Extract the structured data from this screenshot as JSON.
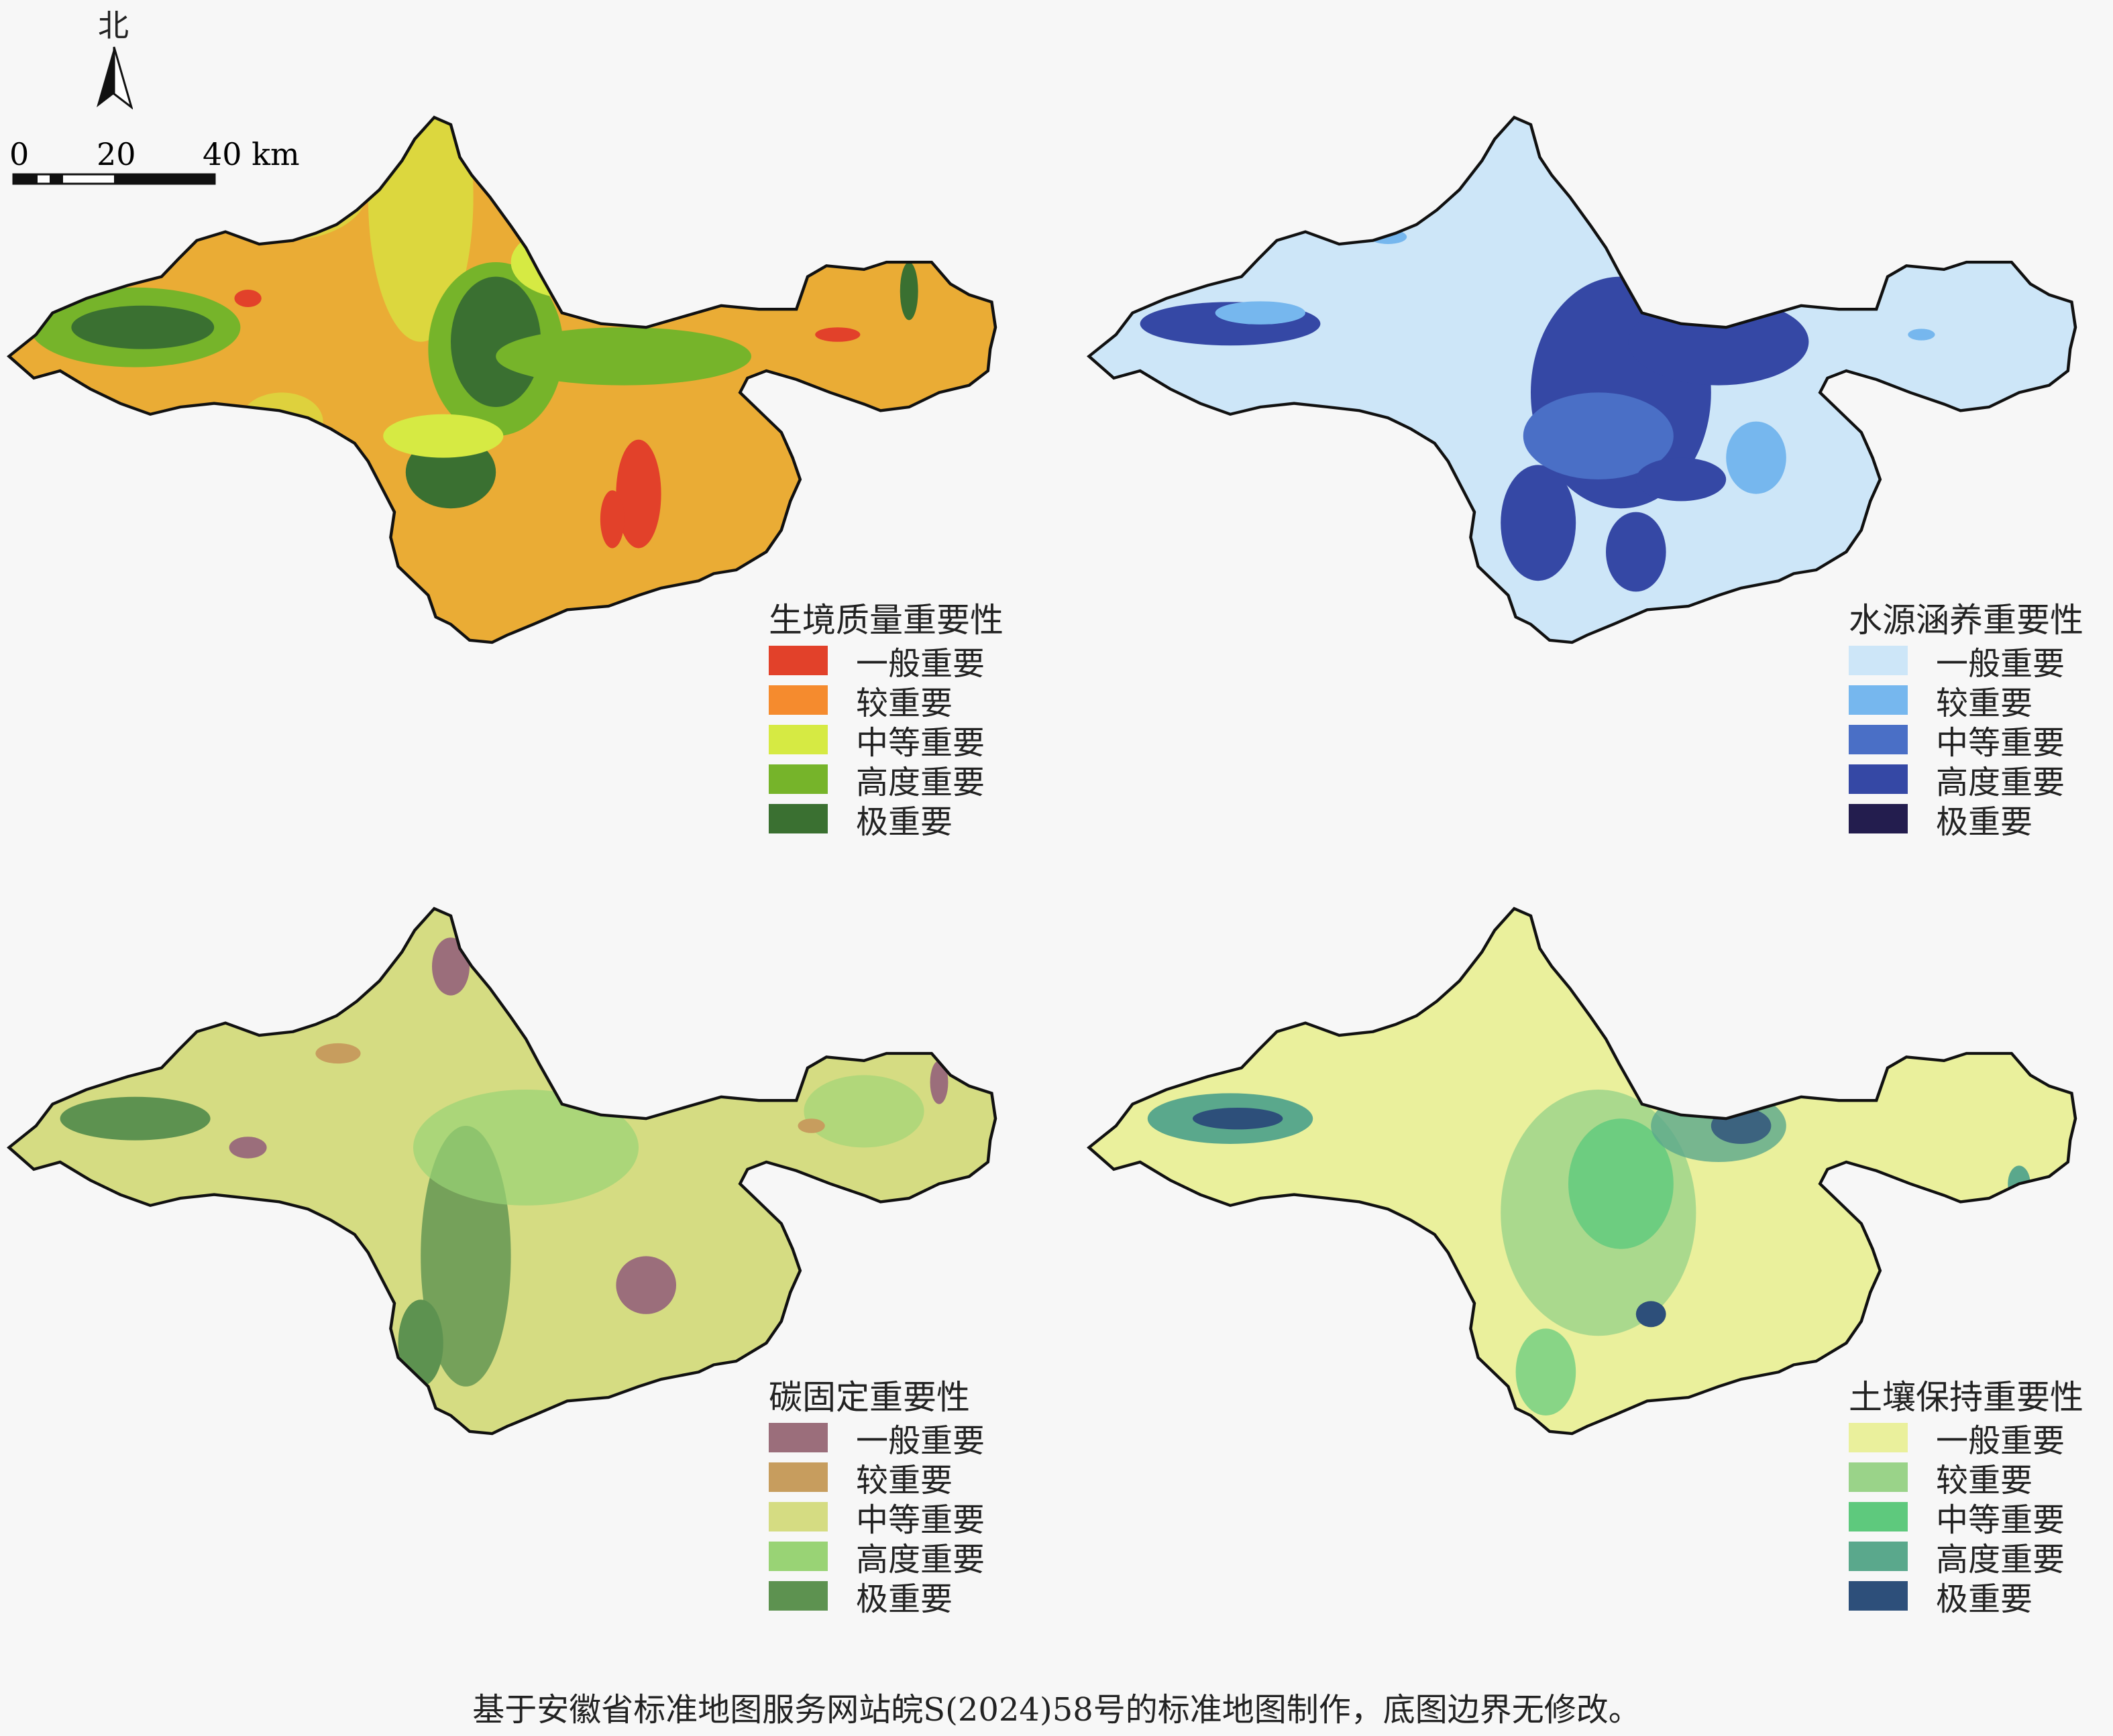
{
  "north": {
    "label": "北"
  },
  "scale": {
    "ticks": [
      "0",
      "20",
      "40 km"
    ]
  },
  "maps": [
    {
      "id": "habitat",
      "legend": {
        "title": "生境质量重要性",
        "items": [
          {
            "label": "一般重要",
            "color": "#e2412a"
          },
          {
            "label": "较重要",
            "color": "#f58b2e"
          },
          {
            "label": "中等重要",
            "color": "#d6ea43"
          },
          {
            "label": "高度重要",
            "color": "#76b42a"
          },
          {
            "label": "极重要",
            "color": "#3a7031"
          }
        ]
      }
    },
    {
      "id": "water",
      "legend": {
        "title": "水源涵养重要性",
        "items": [
          {
            "label": "一般重要",
            "color": "#cde6f8"
          },
          {
            "label": "较重要",
            "color": "#76b7ee"
          },
          {
            "label": "中等重要",
            "color": "#4a6fc6"
          },
          {
            "label": "高度重要",
            "color": "#3548a5"
          },
          {
            "label": "极重要",
            "color": "#231d4e"
          }
        ]
      }
    },
    {
      "id": "carbon",
      "legend": {
        "title": "碳固定重要性",
        "items": [
          {
            "label": "一般重要",
            "color": "#9b6e7b"
          },
          {
            "label": "较重要",
            "color": "#c79d5e"
          },
          {
            "label": "中等重要",
            "color": "#d5dc82"
          },
          {
            "label": "高度重要",
            "color": "#99d375"
          },
          {
            "label": "极重要",
            "color": "#5d9250"
          }
        ]
      }
    },
    {
      "id": "soil",
      "legend": {
        "title": "土壤保持重要性",
        "items": [
          {
            "label": "一般重要",
            "color": "#eaf09c"
          },
          {
            "label": "较重要",
            "color": "#9ad389"
          },
          {
            "label": "中等重要",
            "color": "#5ec97d"
          },
          {
            "label": "高度重要",
            "color": "#5aa88c"
          },
          {
            "label": "极重要",
            "color": "#2d4f7a"
          }
        ]
      }
    }
  ],
  "footer": "基于安徽省标准地图服务网站皖S(2024)58号的标准地图制作，底图边界无修改。"
}
